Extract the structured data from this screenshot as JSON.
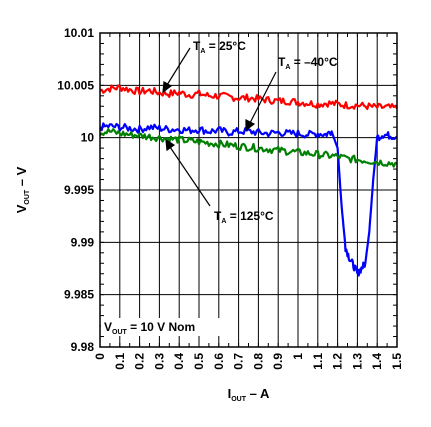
{
  "chart_data": {
    "type": "line",
    "xlabel": {
      "main": "I",
      "sub": "OUT",
      "rest": " – A"
    },
    "ylabel": {
      "main": "V",
      "sub": "OUT",
      "rest": " – V"
    },
    "xlim": [
      0,
      1.5
    ],
    "ylim": [
      9.98,
      10.01
    ],
    "x_ticks": [
      "0",
      "0.1",
      "0.2",
      "0.3",
      "0.4",
      "0.5",
      "0.6",
      "0.7",
      "0.8",
      "0.9",
      "1",
      "1.1",
      "1.2",
      "1.3",
      "1.4",
      "1.5"
    ],
    "y_ticks": [
      "9.98",
      "9.985",
      "9.99",
      "9.995",
      "10",
      "10.005",
      "10.01"
    ],
    "grid": true,
    "series": [
      {
        "name": "T_A = 25°C",
        "color": "#ff0000",
        "x": [
          0,
          0.05,
          0.1,
          0.15,
          0.2,
          0.25,
          0.3,
          0.35,
          0.4,
          0.45,
          0.5,
          0.55,
          0.6,
          0.65,
          0.7,
          0.75,
          0.8,
          0.85,
          0.9,
          0.95,
          1.0,
          1.05,
          1.1,
          1.15,
          1.2,
          1.25,
          1.3,
          1.35,
          1.4,
          1.45,
          1.5
        ],
        "y": [
          10.0045,
          10.0047,
          10.0048,
          10.0046,
          10.0044,
          10.0045,
          10.0043,
          10.0042,
          10.0043,
          10.0041,
          10.0042,
          10.004,
          10.004,
          10.0039,
          10.0038,
          10.0038,
          10.0037,
          10.0036,
          10.0035,
          10.0035,
          10.0034,
          10.0033,
          10.0032,
          10.0033,
          10.0032,
          10.0031,
          10.0031,
          10.003,
          10.0029,
          10.0029,
          10.0028
        ]
      },
      {
        "name": "T_A = –40°C",
        "color": "#0000ff",
        "x": [
          0,
          0.05,
          0.1,
          0.15,
          0.2,
          0.25,
          0.3,
          0.35,
          0.4,
          0.45,
          0.5,
          0.55,
          0.6,
          0.65,
          0.7,
          0.75,
          0.8,
          0.85,
          0.9,
          0.95,
          1.0,
          1.05,
          1.1,
          1.14,
          1.17,
          1.2,
          1.22,
          1.24,
          1.26,
          1.28,
          1.3,
          1.32,
          1.34,
          1.36,
          1.38,
          1.4,
          1.43,
          1.46,
          1.5
        ],
        "y": [
          10.001,
          10.0011,
          10.001,
          10.0009,
          10.0008,
          10.001,
          10.0009,
          10.0008,
          10.0008,
          10.0007,
          10.0008,
          10.0006,
          10.0007,
          10.0005,
          10.0006,
          10.0006,
          10.0005,
          10.0004,
          10.0005,
          10.0004,
          10.0004,
          10.0003,
          10.0004,
          10.0003,
          10.0006,
          9.999,
          9.9935,
          9.9895,
          9.9885,
          9.9878,
          9.987,
          9.9875,
          9.988,
          9.991,
          9.996,
          10.0,
          10.0003,
          10.0002,
          10.0001
        ]
      },
      {
        "name": "T_A = 125°C",
        "color": "#008000",
        "x": [
          0,
          0.05,
          0.1,
          0.15,
          0.2,
          0.25,
          0.3,
          0.35,
          0.4,
          0.45,
          0.5,
          0.55,
          0.6,
          0.65,
          0.7,
          0.75,
          0.8,
          0.85,
          0.9,
          0.95,
          1.0,
          1.05,
          1.1,
          1.15,
          1.2,
          1.25,
          1.3,
          1.35,
          1.4,
          1.45,
          1.5
        ],
        "y": [
          10.0005,
          10.0006,
          10.0004,
          10.0003,
          10.0002,
          10.0001,
          10.0,
          9.9999,
          9.9998,
          9.9997,
          9.9996,
          9.9995,
          9.9994,
          9.9993,
          9.9992,
          9.9991,
          9.999,
          9.9989,
          9.9988,
          9.9987,
          9.9986,
          9.9985,
          9.9984,
          9.9983,
          9.9982,
          9.998,
          9.9979,
          9.9978,
          9.9977,
          9.9976,
          9.9975
        ]
      }
    ],
    "annotations": [
      {
        "main": "T",
        "sub": "A",
        "rest": " = 25°C"
      },
      {
        "main": "T",
        "sub": "A",
        "rest": " = –40°C"
      },
      {
        "main": "T",
        "sub": "A",
        "rest": " = 125°C"
      },
      {
        "main": "V",
        "sub": "OUT",
        "rest": " = 10 V Nom"
      }
    ]
  }
}
